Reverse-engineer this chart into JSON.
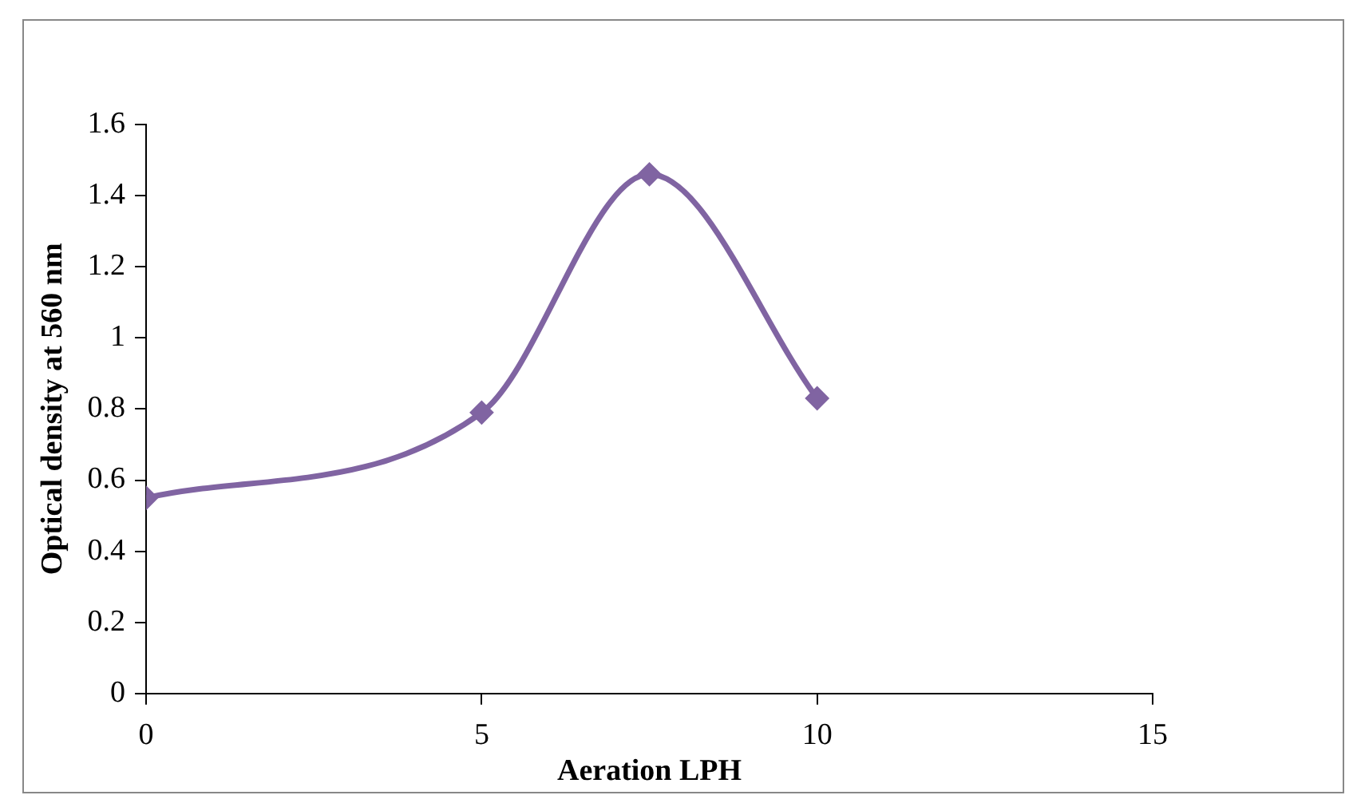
{
  "chart_data": {
    "type": "line",
    "xlabel": "Aeration LPH",
    "ylabel": "Optical density at 560 nm",
    "x": [
      0,
      5,
      7.5,
      10
    ],
    "series": [
      {
        "color": "#8064a2",
        "values": [
          0.55,
          0.79,
          1.46,
          0.83
        ]
      }
    ],
    "xlim": [
      0,
      15
    ],
    "xticks": [
      0,
      5,
      10,
      15
    ],
    "ylim": [
      0,
      1.6
    ],
    "yticks": [
      0,
      0.2,
      0.4,
      0.6,
      0.8,
      1,
      1.2,
      1.4,
      1.6
    ],
    "grid": false,
    "legend": false,
    "marker": "diamond",
    "line_style": "solid"
  }
}
